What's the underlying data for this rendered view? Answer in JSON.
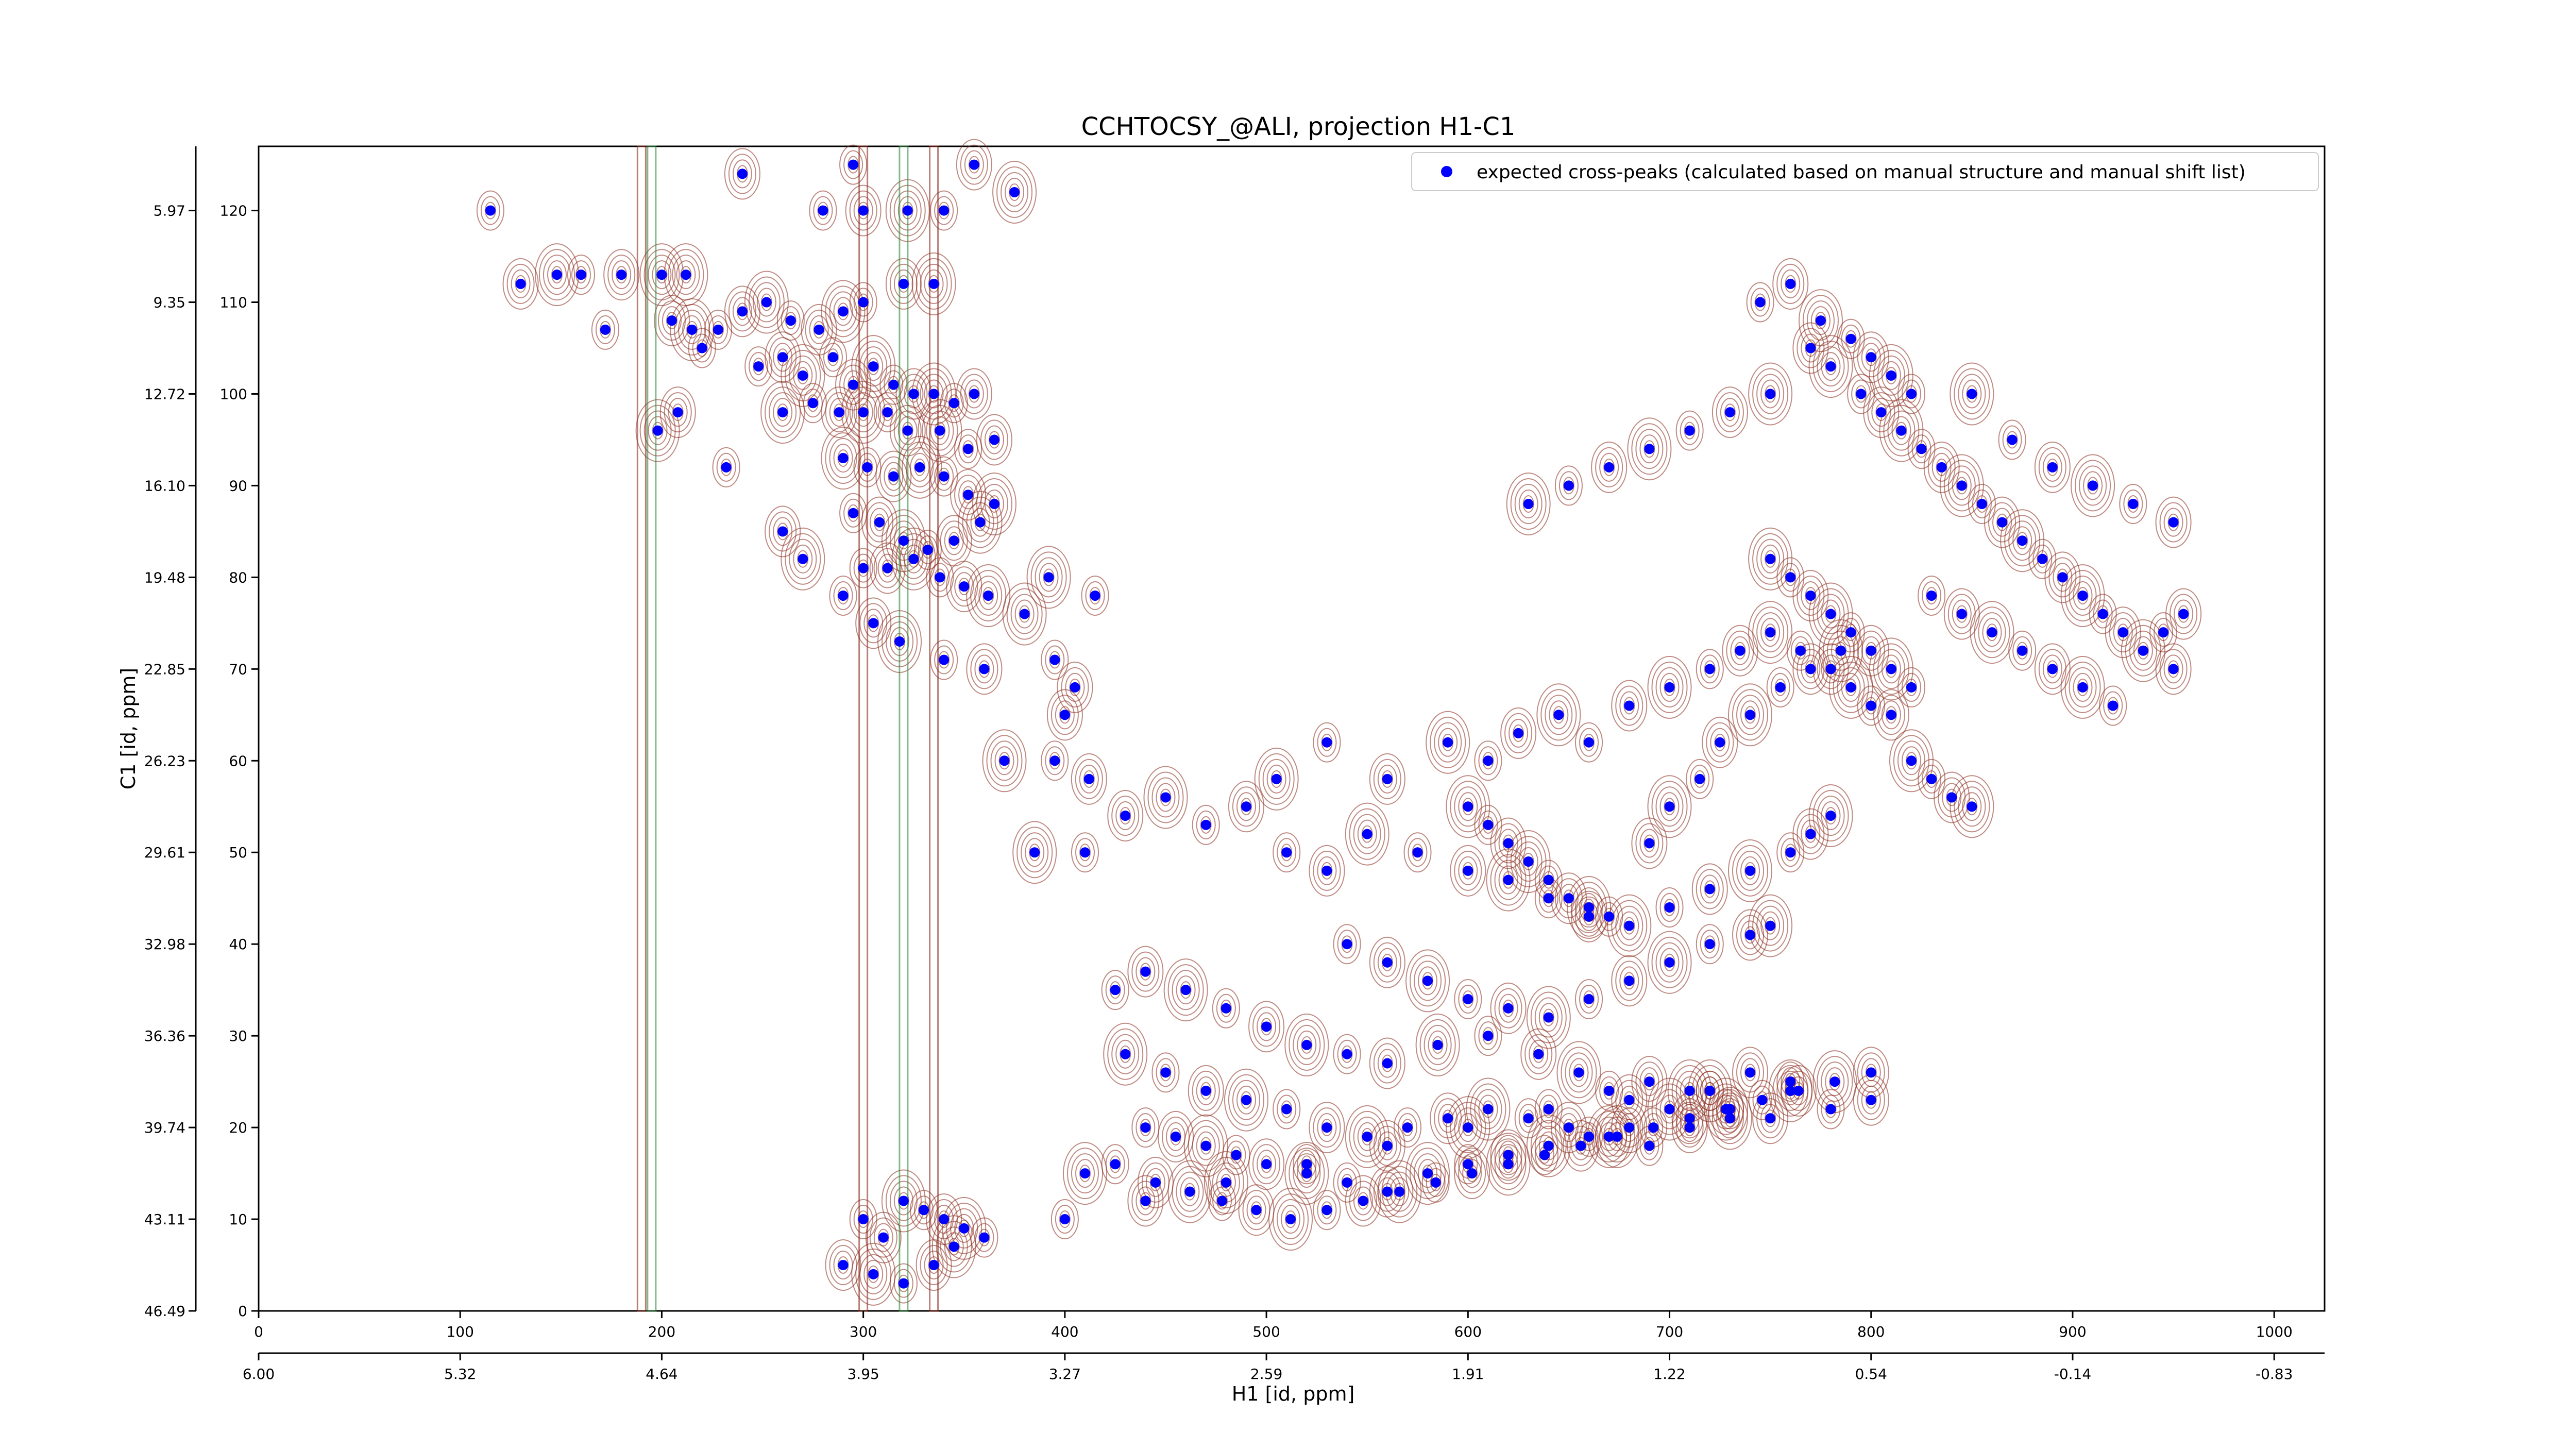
{
  "chart_data": {
    "type": "scatter",
    "title": "CCHTOCSY_@ALI, projection H1-C1",
    "xlabel_bottom": "H1 [id, ppm]",
    "ylabel_left": "C1 [id, ppm]",
    "xlim": [
      0,
      1025
    ],
    "ylim": [
      0,
      127
    ],
    "x_ticks": [
      "0",
      "100",
      "200",
      "300",
      "400",
      "500",
      "600",
      "700",
      "800",
      "900",
      "1000"
    ],
    "y_ticks": [
      "0",
      "10",
      "20",
      "30",
      "40",
      "50",
      "60",
      "70",
      "80",
      "90",
      "100",
      "110",
      "120"
    ],
    "h1_ppm_ticks": [
      "6.00",
      "5.32",
      "4.64",
      "3.95",
      "3.27",
      "2.59",
      "1.91",
      "1.22",
      "0.54",
      "-0.14",
      "-0.83"
    ],
    "c1_ppm_ticks": [
      "46.49",
      "43.11",
      "39.74",
      "36.36",
      "32.98",
      "29.61",
      "26.23",
      "22.85",
      "19.48",
      "16.10",
      "12.72",
      "9.35",
      "5.97"
    ],
    "legend": {
      "position": "top-right",
      "label": "expected cross-peaks (calculated based on manual structure and manual shift list)"
    },
    "colors": {
      "peak": "#0000ff",
      "contour_positive": "#8b2b1e",
      "contour_negative": "#2e8b3e"
    },
    "series": [
      {
        "name": "expected cross-peaks (calculated based on manual structure and manual shift list)",
        "points": [
          [
            115,
            120
          ],
          [
            130,
            112
          ],
          [
            148,
            113
          ],
          [
            160,
            113
          ],
          [
            180,
            113
          ],
          [
            200,
            113
          ],
          [
            172,
            107
          ],
          [
            205,
            108
          ],
          [
            215,
            107
          ],
          [
            228,
            107
          ],
          [
            240,
            109
          ],
          [
            252,
            110
          ],
          [
            264,
            108
          ],
          [
            278,
            107
          ],
          [
            290,
            109
          ],
          [
            300,
            110
          ],
          [
            320,
            112
          ],
          [
            335,
            112
          ],
          [
            248,
            103
          ],
          [
            260,
            104
          ],
          [
            270,
            102
          ],
          [
            285,
            104
          ],
          [
            295,
            101
          ],
          [
            305,
            103
          ],
          [
            315,
            101
          ],
          [
            325,
            100
          ],
          [
            335,
            100
          ],
          [
            345,
            99
          ],
          [
            355,
            100
          ],
          [
            260,
            98
          ],
          [
            275,
            99
          ],
          [
            288,
            98
          ],
          [
            300,
            98
          ],
          [
            312,
            98
          ],
          [
            322,
            96
          ],
          [
            338,
            96
          ],
          [
            352,
            94
          ],
          [
            365,
            95
          ],
          [
            290,
            93
          ],
          [
            302,
            92
          ],
          [
            315,
            91
          ],
          [
            328,
            92
          ],
          [
            340,
            91
          ],
          [
            352,
            89
          ],
          [
            365,
            88
          ],
          [
            295,
            87
          ],
          [
            308,
            86
          ],
          [
            320,
            84
          ],
          [
            332,
            83
          ],
          [
            345,
            84
          ],
          [
            358,
            86
          ],
          [
            300,
            81
          ],
          [
            312,
            81
          ],
          [
            325,
            82
          ],
          [
            338,
            80
          ],
          [
            350,
            79
          ],
          [
            362,
            78
          ],
          [
            280,
            120
          ],
          [
            300,
            120
          ],
          [
            322,
            120
          ],
          [
            340,
            120
          ],
          [
            355,
            125
          ],
          [
            375,
            122
          ],
          [
            295,
            125
          ],
          [
            240,
            124
          ],
          [
            212,
            113
          ],
          [
            220,
            105
          ],
          [
            208,
            98
          ],
          [
            198,
            96
          ],
          [
            232,
            92
          ],
          [
            260,
            85
          ],
          [
            270,
            82
          ],
          [
            290,
            78
          ],
          [
            305,
            75
          ],
          [
            318,
            73
          ],
          [
            340,
            71
          ],
          [
            360,
            70
          ],
          [
            380,
            76
          ],
          [
            395,
            71
          ],
          [
            405,
            68
          ],
          [
            392,
            80
          ],
          [
            415,
            78
          ],
          [
            400,
            65
          ],
          [
            370,
            60
          ],
          [
            395,
            60
          ],
          [
            412,
            58
          ],
          [
            385,
            50
          ],
          [
            410,
            50
          ],
          [
            430,
            54
          ],
          [
            450,
            56
          ],
          [
            470,
            53
          ],
          [
            490,
            55
          ],
          [
            505,
            58
          ],
          [
            530,
            62
          ],
          [
            560,
            58
          ],
          [
            590,
            62
          ],
          [
            610,
            60
          ],
          [
            625,
            63
          ],
          [
            645,
            65
          ],
          [
            660,
            62
          ],
          [
            680,
            66
          ],
          [
            700,
            68
          ],
          [
            720,
            70
          ],
          [
            735,
            72
          ],
          [
            750,
            74
          ],
          [
            765,
            72
          ],
          [
            780,
            70
          ],
          [
            790,
            68
          ],
          [
            800,
            66
          ],
          [
            810,
            65
          ],
          [
            820,
            60
          ],
          [
            830,
            58
          ],
          [
            840,
            56
          ],
          [
            850,
            55
          ],
          [
            510,
            50
          ],
          [
            530,
            48
          ],
          [
            550,
            52
          ],
          [
            575,
            50
          ],
          [
            600,
            48
          ],
          [
            620,
            47
          ],
          [
            640,
            45
          ],
          [
            660,
            43
          ],
          [
            680,
            42
          ],
          [
            700,
            44
          ],
          [
            720,
            46
          ],
          [
            740,
            48
          ],
          [
            760,
            50
          ],
          [
            770,
            52
          ],
          [
            780,
            54
          ],
          [
            540,
            40
          ],
          [
            560,
            38
          ],
          [
            580,
            36
          ],
          [
            600,
            34
          ],
          [
            620,
            33
          ],
          [
            640,
            32
          ],
          [
            660,
            34
          ],
          [
            680,
            36
          ],
          [
            700,
            38
          ],
          [
            720,
            40
          ],
          [
            740,
            41
          ],
          [
            750,
            42
          ],
          [
            425,
            35
          ],
          [
            440,
            37
          ],
          [
            460,
            35
          ],
          [
            480,
            33
          ],
          [
            500,
            31
          ],
          [
            520,
            29
          ],
          [
            540,
            28
          ],
          [
            560,
            27
          ],
          [
            585,
            29
          ],
          [
            610,
            30
          ],
          [
            635,
            28
          ],
          [
            655,
            26
          ],
          [
            670,
            24
          ],
          [
            690,
            25
          ],
          [
            710,
            24
          ],
          [
            730,
            22
          ],
          [
            750,
            21
          ],
          [
            430,
            28
          ],
          [
            450,
            26
          ],
          [
            470,
            24
          ],
          [
            490,
            23
          ],
          [
            510,
            22
          ],
          [
            530,
            20
          ],
          [
            550,
            19
          ],
          [
            570,
            20
          ],
          [
            590,
            21
          ],
          [
            610,
            22
          ],
          [
            630,
            21
          ],
          [
            650,
            20
          ],
          [
            670,
            19
          ],
          [
            690,
            18
          ],
          [
            710,
            20
          ],
          [
            730,
            21
          ],
          [
            440,
            20
          ],
          [
            455,
            19
          ],
          [
            470,
            18
          ],
          [
            485,
            17
          ],
          [
            500,
            16
          ],
          [
            520,
            15
          ],
          [
            540,
            14
          ],
          [
            560,
            13
          ],
          [
            580,
            15
          ],
          [
            600,
            16
          ],
          [
            620,
            17
          ],
          [
            640,
            18
          ],
          [
            660,
            19
          ],
          [
            680,
            20
          ],
          [
            700,
            22
          ],
          [
            720,
            24
          ],
          [
            740,
            26
          ],
          [
            760,
            24
          ],
          [
            780,
            22
          ],
          [
            800,
            23
          ],
          [
            410,
            15
          ],
          [
            425,
            16
          ],
          [
            445,
            14
          ],
          [
            462,
            13
          ],
          [
            478,
            12
          ],
          [
            495,
            11
          ],
          [
            512,
            10
          ],
          [
            530,
            11
          ],
          [
            548,
            12
          ],
          [
            566,
            13
          ],
          [
            584,
            14
          ],
          [
            602,
            15
          ],
          [
            620,
            16
          ],
          [
            638,
            17
          ],
          [
            656,
            18
          ],
          [
            674,
            19
          ],
          [
            692,
            20
          ],
          [
            710,
            21
          ],
          [
            728,
            22
          ],
          [
            746,
            23
          ],
          [
            764,
            24
          ],
          [
            782,
            25
          ],
          [
            300,
            10
          ],
          [
            310,
            8
          ],
          [
            320,
            12
          ],
          [
            330,
            11
          ],
          [
            340,
            10
          ],
          [
            350,
            9
          ],
          [
            360,
            8
          ],
          [
            290,
            5
          ],
          [
            305,
            4
          ],
          [
            320,
            3
          ],
          [
            335,
            5
          ],
          [
            345,
            7
          ],
          [
            400,
            10
          ],
          [
            440,
            12
          ],
          [
            480,
            14
          ],
          [
            520,
            16
          ],
          [
            560,
            18
          ],
          [
            600,
            20
          ],
          [
            640,
            22
          ],
          [
            680,
            23
          ],
          [
            720,
            24
          ],
          [
            760,
            25
          ],
          [
            800,
            26
          ],
          [
            600,
            55
          ],
          [
            610,
            53
          ],
          [
            620,
            51
          ],
          [
            630,
            49
          ],
          [
            640,
            47
          ],
          [
            650,
            45
          ],
          [
            660,
            44
          ],
          [
            670,
            43
          ],
          [
            690,
            51
          ],
          [
            700,
            55
          ],
          [
            715,
            58
          ],
          [
            725,
            62
          ],
          [
            740,
            65
          ],
          [
            755,
            68
          ],
          [
            770,
            70
          ],
          [
            785,
            72
          ],
          [
            745,
            110
          ],
          [
            760,
            112
          ],
          [
            775,
            108
          ],
          [
            790,
            106
          ],
          [
            800,
            104
          ],
          [
            810,
            102
          ],
          [
            820,
            100
          ],
          [
            770,
            105
          ],
          [
            780,
            103
          ],
          [
            795,
            100
          ],
          [
            805,
            98
          ],
          [
            815,
            96
          ],
          [
            825,
            94
          ],
          [
            835,
            92
          ],
          [
            845,
            90
          ],
          [
            855,
            88
          ],
          [
            865,
            86
          ],
          [
            875,
            84
          ],
          [
            885,
            82
          ],
          [
            895,
            80
          ],
          [
            905,
            78
          ],
          [
            915,
            76
          ],
          [
            925,
            74
          ],
          [
            935,
            72
          ],
          [
            945,
            74
          ],
          [
            955,
            76
          ],
          [
            850,
            100
          ],
          [
            870,
            95
          ],
          [
            890,
            92
          ],
          [
            910,
            90
          ],
          [
            930,
            88
          ],
          [
            950,
            86
          ],
          [
            630,
            88
          ],
          [
            650,
            90
          ],
          [
            670,
            92
          ],
          [
            690,
            94
          ],
          [
            710,
            96
          ],
          [
            730,
            98
          ],
          [
            750,
            100
          ],
          [
            830,
            78
          ],
          [
            845,
            76
          ],
          [
            860,
            74
          ],
          [
            875,
            72
          ],
          [
            890,
            70
          ],
          [
            905,
            68
          ],
          [
            920,
            66
          ],
          [
            950,
            70
          ],
          [
            750,
            82
          ],
          [
            760,
            80
          ],
          [
            770,
            78
          ],
          [
            780,
            76
          ],
          [
            790,
            74
          ],
          [
            800,
            72
          ],
          [
            810,
            70
          ],
          [
            820,
            68
          ]
        ]
      }
    ]
  }
}
